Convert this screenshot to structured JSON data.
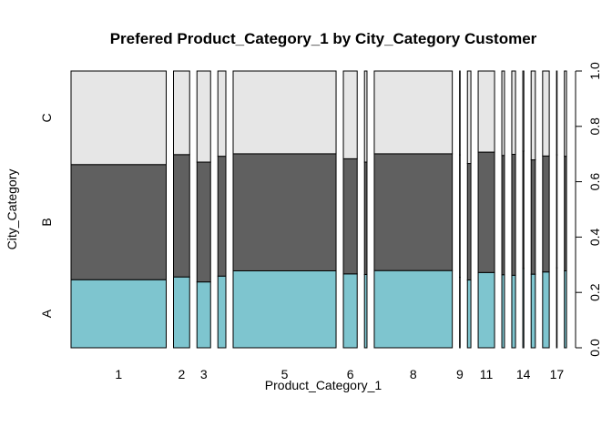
{
  "chart_data": {
    "type": "mosaic",
    "title": "Prefered Product_Category_1 by City_Category Customer",
    "xlabel": "Product_Category_1",
    "ylabel": "City_Category",
    "categories": [
      "1",
      "2",
      "3",
      "4",
      "5",
      "6",
      "7",
      "8",
      "9",
      "10",
      "11",
      "12",
      "13",
      "14",
      "15",
      "16",
      "17",
      "18"
    ],
    "x_tick_labels": [
      {
        "category": "1",
        "label": "1"
      },
      {
        "category": "2",
        "label": "2"
      },
      {
        "category": "3",
        "label": "3"
      },
      {
        "category": "5",
        "label": "5"
      },
      {
        "category": "6",
        "label": "6"
      },
      {
        "category": "8",
        "label": "8"
      },
      {
        "category": "9",
        "label": "9"
      },
      {
        "category": "11",
        "label": "11"
      },
      {
        "category": "14",
        "label": "14"
      },
      {
        "category": "17",
        "label": "17"
      }
    ],
    "column_widths": [
      0.2574,
      0.0437,
      0.0369,
      0.0216,
      0.2784,
      0.0374,
      0.0068,
      0.211,
      0.0008,
      0.0094,
      0.0443,
      0.0072,
      0.0101,
      0.0028,
      0.0114,
      0.0179,
      0.0011,
      0.0058
    ],
    "series": [
      {
        "name": "A",
        "color": "#7ec5cf",
        "values": [
          0.246,
          0.256,
          0.238,
          0.259,
          0.278,
          0.267,
          0.265,
          0.279,
          0.255,
          0.245,
          0.272,
          0.264,
          0.262,
          0.287,
          0.266,
          0.274,
          0.289,
          0.278
        ]
      },
      {
        "name": "B",
        "color": "#606060",
        "values": [
          0.416,
          0.442,
          0.433,
          0.433,
          0.423,
          0.416,
          0.406,
          0.422,
          0.442,
          0.421,
          0.435,
          0.431,
          0.437,
          0.424,
          0.413,
          0.419,
          0.408,
          0.414
        ]
      },
      {
        "name": "C",
        "color": "#e6e6e6",
        "values": [
          0.338,
          0.302,
          0.329,
          0.308,
          0.299,
          0.317,
          0.329,
          0.299,
          0.303,
          0.334,
          0.293,
          0.305,
          0.301,
          0.289,
          0.321,
          0.307,
          0.303,
          0.308
        ]
      }
    ],
    "y_category_labels": [
      "A",
      "B",
      "C"
    ],
    "right_axis": {
      "ticks": [
        "0.0",
        "0.2",
        "0.4",
        "0.6",
        "0.8",
        "1.0"
      ],
      "range": [
        0,
        1
      ]
    },
    "grid": false
  }
}
